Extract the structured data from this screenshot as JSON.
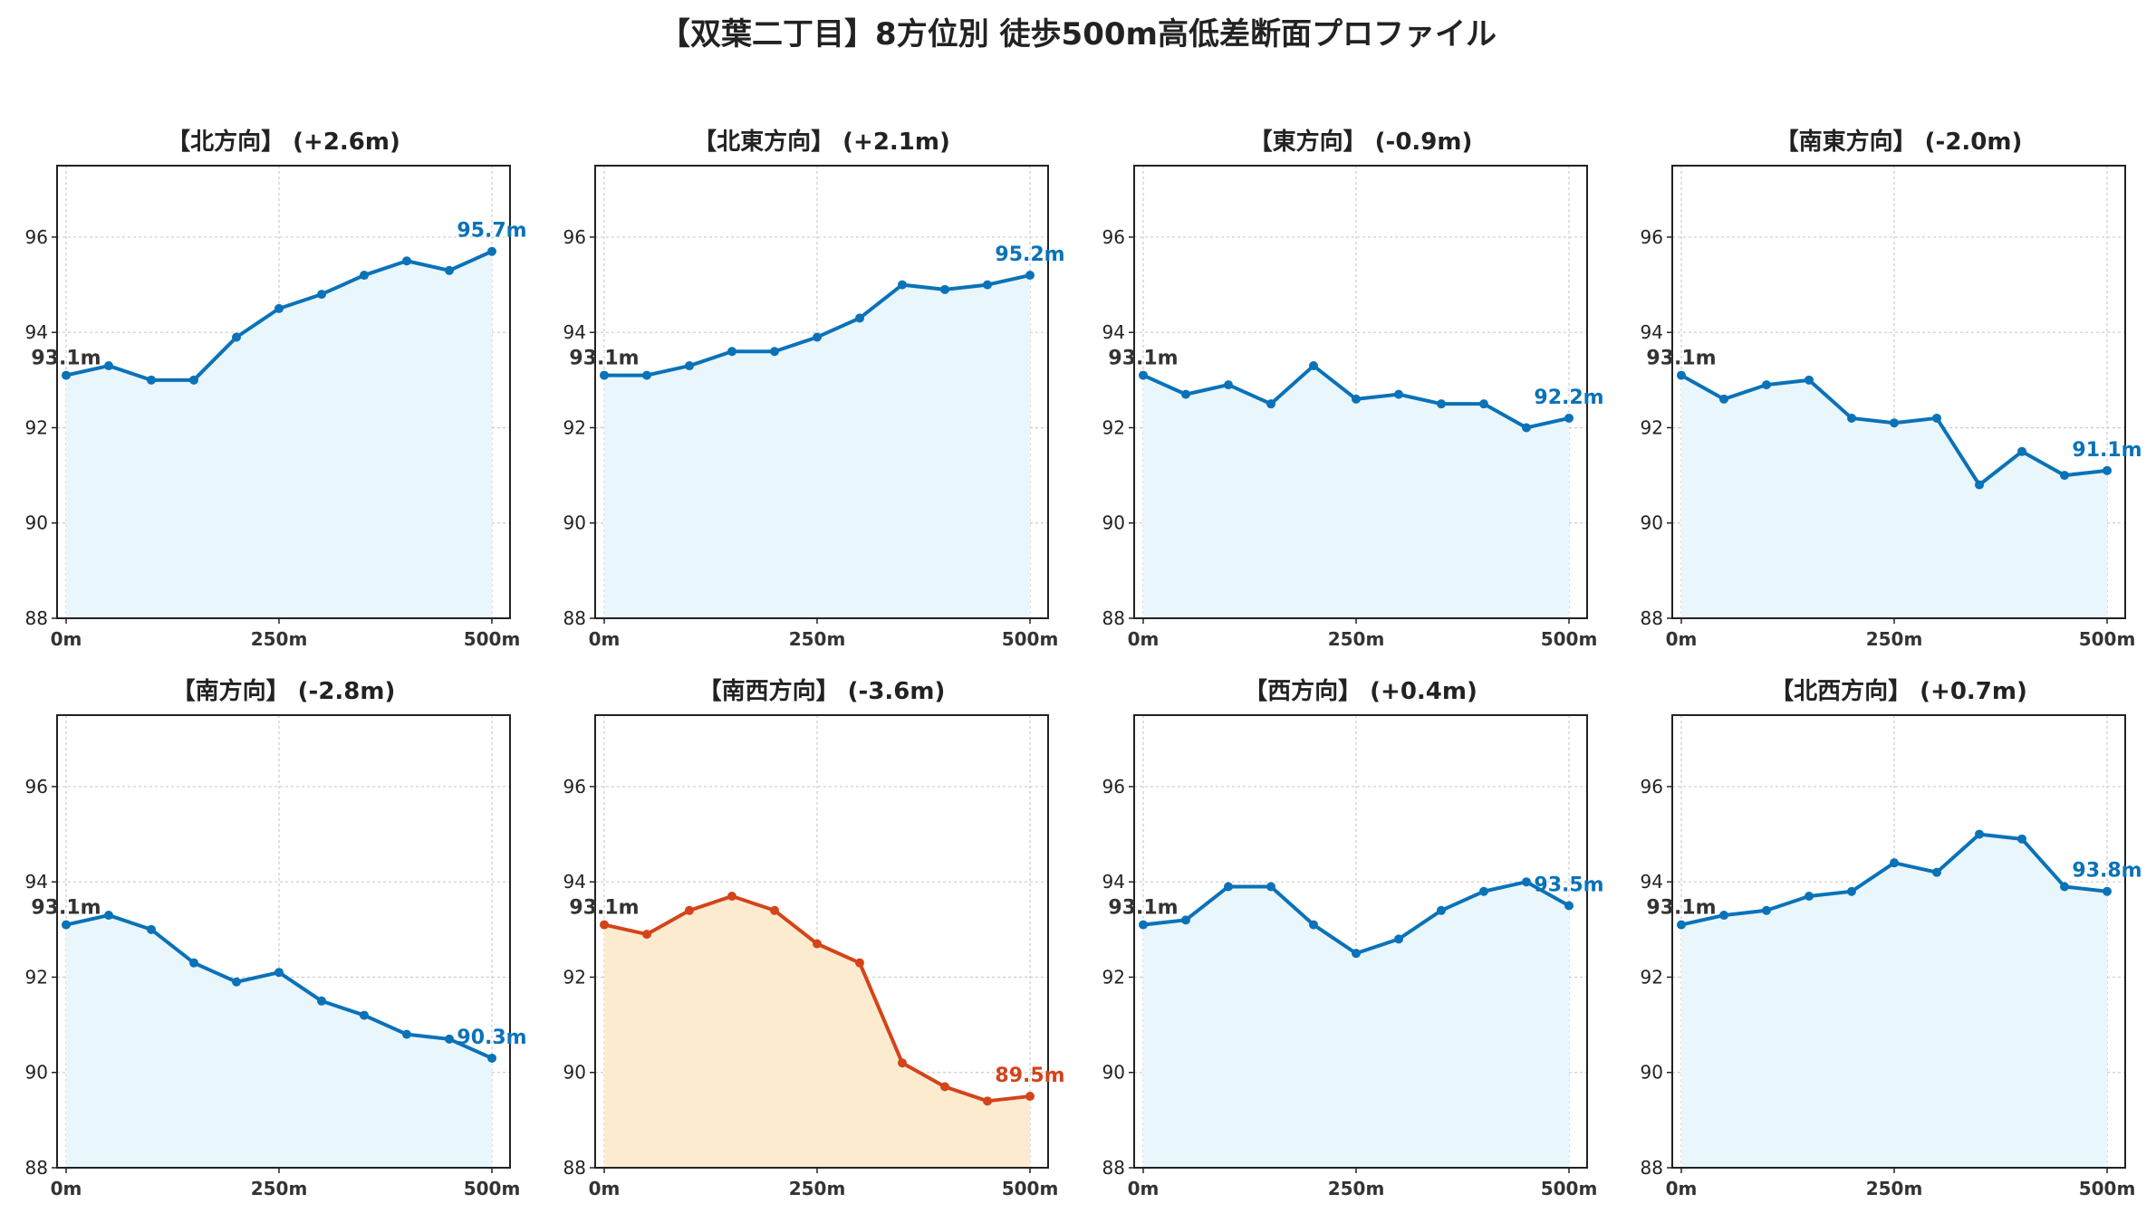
{
  "title": "【双葉二丁目】8方位別 徒歩500m高低差断面プロファイル",
  "colors": {
    "normal_line": "#0a72b8",
    "normal_fill": "#e9f6fc",
    "highlight_line": "#d4441a",
    "highlight_fill": "#fdebd0",
    "start_label": "#333333",
    "grid": "#cccccc"
  },
  "chart_data": [
    {
      "type": "area",
      "title": "【北方向】 (+2.6m)",
      "x": [
        0,
        50,
        100,
        150,
        200,
        250,
        300,
        350,
        400,
        450,
        500
      ],
      "values": [
        93.1,
        93.3,
        93.0,
        93.0,
        93.9,
        94.5,
        94.8,
        95.2,
        95.5,
        95.3,
        95.7
      ],
      "start_label": "93.1m",
      "end_label": "95.7m",
      "highlight": false
    },
    {
      "type": "area",
      "title": "【北東方向】 (+2.1m)",
      "x": [
        0,
        50,
        100,
        150,
        200,
        250,
        300,
        350,
        400,
        450,
        500
      ],
      "values": [
        93.1,
        93.1,
        93.3,
        93.6,
        93.6,
        93.9,
        94.3,
        95.0,
        94.9,
        95.0,
        95.2
      ],
      "start_label": "93.1m",
      "end_label": "95.2m",
      "highlight": false
    },
    {
      "type": "area",
      "title": "【東方向】 (-0.9m)",
      "x": [
        0,
        50,
        100,
        150,
        200,
        250,
        300,
        350,
        400,
        450,
        500
      ],
      "values": [
        93.1,
        92.7,
        92.9,
        92.5,
        93.3,
        92.6,
        92.7,
        92.5,
        92.5,
        92.0,
        92.2
      ],
      "start_label": "93.1m",
      "end_label": "92.2m",
      "highlight": false
    },
    {
      "type": "area",
      "title": "【南東方向】 (-2.0m)",
      "x": [
        0,
        50,
        100,
        150,
        200,
        250,
        300,
        350,
        400,
        450,
        500
      ],
      "values": [
        93.1,
        92.6,
        92.9,
        93.0,
        92.2,
        92.1,
        92.2,
        90.8,
        91.5,
        91.0,
        91.1
      ],
      "start_label": "93.1m",
      "end_label": "91.1m",
      "highlight": false
    },
    {
      "type": "area",
      "title": "【南方向】 (-2.8m)",
      "x": [
        0,
        50,
        100,
        150,
        200,
        250,
        300,
        350,
        400,
        450,
        500
      ],
      "values": [
        93.1,
        93.3,
        93.0,
        92.3,
        91.9,
        92.1,
        91.5,
        91.2,
        90.8,
        90.7,
        90.3
      ],
      "start_label": "93.1m",
      "end_label": "90.3m",
      "highlight": false
    },
    {
      "type": "area",
      "title": "【南西方向】 (-3.6m)",
      "x": [
        0,
        50,
        100,
        150,
        200,
        250,
        300,
        350,
        400,
        450,
        500
      ],
      "values": [
        93.1,
        92.9,
        93.4,
        93.7,
        93.4,
        92.7,
        92.3,
        90.2,
        89.7,
        89.4,
        89.5
      ],
      "start_label": "93.1m",
      "end_label": "89.5m",
      "highlight": true
    },
    {
      "type": "area",
      "title": "【西方向】 (+0.4m)",
      "x": [
        0,
        50,
        100,
        150,
        200,
        250,
        300,
        350,
        400,
        450,
        500
      ],
      "values": [
        93.1,
        93.2,
        93.9,
        93.9,
        93.1,
        92.5,
        92.8,
        93.4,
        93.8,
        94.0,
        93.5
      ],
      "start_label": "93.1m",
      "end_label": "93.5m",
      "highlight": false
    },
    {
      "type": "area",
      "title": "【北西方向】 (+0.7m)",
      "x": [
        0,
        50,
        100,
        150,
        200,
        250,
        300,
        350,
        400,
        450,
        500
      ],
      "values": [
        93.1,
        93.3,
        93.4,
        93.7,
        93.8,
        94.4,
        94.2,
        95.0,
        94.9,
        93.9,
        93.8
      ],
      "start_label": "93.1m",
      "end_label": "93.8m",
      "highlight": false
    }
  ],
  "axes": {
    "xlim": [
      0,
      500
    ],
    "ylim": [
      88,
      97.5
    ],
    "x_ticks": [
      0,
      250,
      500
    ],
    "x_tick_labels": [
      "0m",
      "250m",
      "500m"
    ],
    "y_ticks": [
      88,
      90,
      92,
      94,
      96
    ],
    "y_tick_labels": [
      "88",
      "90",
      "92",
      "94",
      "96"
    ],
    "grid": true
  }
}
